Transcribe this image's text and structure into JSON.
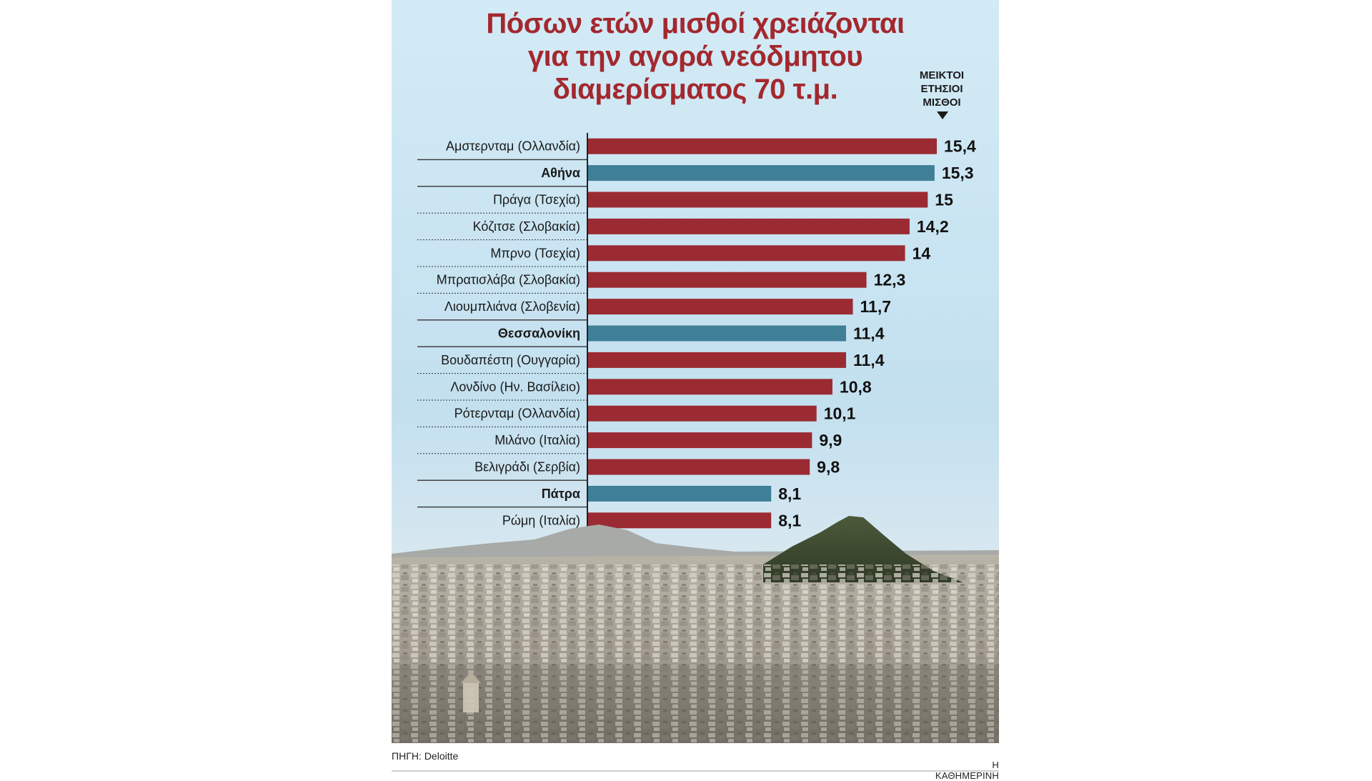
{
  "title_lines": [
    "Πόσων ετών μισθοί χρειάζονται",
    "για την αγορά νεόδμητου",
    "διαμερίσματος 70 τ.μ."
  ],
  "unit_label_lines": [
    "ΜΕΙΚΤΟΙ",
    "ΕΤΗΣΙΟΙ",
    "ΜΙΣΘΟΙ"
  ],
  "source": "ΠΗΓΗ: Deloitte",
  "credit": "Η ΚΑΘΗΜΕΡΙΝΗ",
  "colors": {
    "bar": "#9b2b32",
    "highlight": "#3f7f98",
    "title": "#a3282e"
  },
  "chart_data": {
    "type": "bar",
    "orientation": "horizontal",
    "title": "Πόσων ετών μισθοί χρειάζονται για την αγορά νεόδμητου διαμερίσματος 70 τ.μ.",
    "value_axis_label": "ΜΕΙΚΤΟΙ ΕΤΗΣΙΟΙ ΜΙΣΘΟΙ",
    "xlim": [
      0,
      16
    ],
    "grid": false,
    "categories": [
      {
        "city": "Αμστερνταμ",
        "country": "(Ολλανδία)",
        "highlight": false
      },
      {
        "city": "Αθήνα",
        "country": "",
        "highlight": true
      },
      {
        "city": "Πράγα",
        "country": "(Τσεχία)",
        "highlight": false
      },
      {
        "city": "Κόζιτσε",
        "country": "(Σλοβακία)",
        "highlight": false
      },
      {
        "city": "Μπρνο",
        "country": "(Τσεχία)",
        "highlight": false
      },
      {
        "city": "Μπρατισλάβα",
        "country": "(Σλοβακία)",
        "highlight": false
      },
      {
        "city": "Λιουμπλιάνα",
        "country": "(Σλοβενία)",
        "highlight": false
      },
      {
        "city": "Θεσσαλονίκη",
        "country": "",
        "highlight": true
      },
      {
        "city": "Βουδαπέστη",
        "country": "(Ουγγαρία)",
        "highlight": false
      },
      {
        "city": "Λονδίνο",
        "country": "(Ην. Βασίλειο)",
        "highlight": false
      },
      {
        "city": "Ρότερνταμ",
        "country": "(Ολλανδία)",
        "highlight": false
      },
      {
        "city": "Μιλάνο",
        "country": "(Ιταλία)",
        "highlight": false
      },
      {
        "city": "Βελιγράδι",
        "country": "(Σερβία)",
        "highlight": false
      },
      {
        "city": "Πάτρα",
        "country": "",
        "highlight": true
      },
      {
        "city": "Ρώμη",
        "country": "(Ιταλία)",
        "highlight": false
      }
    ],
    "values": [
      15.4,
      15.3,
      15,
      14.2,
      14,
      12.3,
      11.7,
      11.4,
      11.4,
      10.8,
      10.1,
      9.9,
      9.8,
      8.1,
      8.1
    ],
    "value_labels": [
      "15,4",
      "15,3",
      "15",
      "14,2",
      "14",
      "12,3",
      "11,7",
      "11,4",
      "11,4",
      "10,8",
      "10,1",
      "9,9",
      "9,8",
      "8,1",
      "8,1"
    ]
  }
}
